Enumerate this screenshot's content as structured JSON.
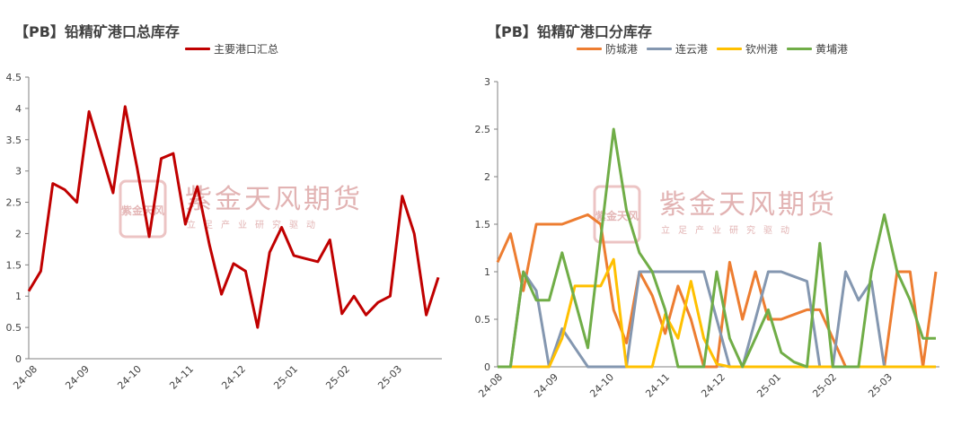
{
  "watermark": {
    "name": "紫金天风期货",
    "subtitle": "立足产业研究驱动",
    "seal": "紫金天风"
  },
  "chart_data": [
    {
      "type": "line",
      "title": "【PB】铅精矿港口总库存",
      "xlabel": "",
      "ylabel": "",
      "ylim": [
        0,
        4.5
      ],
      "yticks": [
        "0",
        "0.5",
        "1",
        "1.5",
        "2",
        "2.5",
        "3",
        "3.5",
        "4",
        "4.5"
      ],
      "xtick_labels": [
        "24-08",
        "24-09",
        "24-10",
        "24-11",
        "24-12",
        "25-01",
        "25-02",
        "25-03"
      ],
      "legend": "top",
      "grid": false,
      "series": [
        {
          "name": "主要港口汇总",
          "color": "#c00000",
          "values": [
            1.08,
            1.4,
            2.8,
            2.7,
            2.5,
            3.95,
            3.3,
            2.65,
            4.03,
            3.05,
            1.95,
            3.2,
            3.28,
            2.15,
            2.75,
            1.82,
            1.03,
            1.52,
            1.4,
            0.5,
            1.7,
            2.1,
            1.65,
            1.6,
            1.55,
            1.9,
            0.72,
            1.0,
            0.7,
            0.9,
            1.0,
            2.6,
            2.0,
            0.7,
            1.3
          ]
        }
      ]
    },
    {
      "type": "line",
      "title": "【PB】铅精矿港口分库存",
      "xlabel": "",
      "ylabel": "",
      "ylim": [
        0,
        3
      ],
      "yticks": [
        "0",
        "0.5",
        "1",
        "1.5",
        "2",
        "2.5",
        "3"
      ],
      "xtick_labels": [
        "24-08",
        "24-09",
        "24-10",
        "24-11",
        "24-12",
        "25-01",
        "25-02",
        "25-03"
      ],
      "legend": "top",
      "grid": false,
      "series": [
        {
          "name": "防城港",
          "color": "#ed7d31",
          "values": [
            1.1,
            1.4,
            0.8,
            1.5,
            1.5,
            1.5,
            1.55,
            1.6,
            1.5,
            0.6,
            0.25,
            1.0,
            0.75,
            0.35,
            0.85,
            0.5,
            0.0,
            0.0,
            1.1,
            0.5,
            1.0,
            0.5,
            0.5,
            0.55,
            0.6,
            0.6,
            0.3,
            0.0,
            0.0,
            0.0,
            0.0,
            1.0,
            1.0,
            0.0,
            1.0
          ]
        },
        {
          "name": "连云港",
          "color": "#8497b0",
          "values": [
            0,
            0,
            1.0,
            0.8,
            0.0,
            0.4,
            0.2,
            0.0,
            0.0,
            0.0,
            0.0,
            1.0,
            1.0,
            1.0,
            1.0,
            1.0,
            1.0,
            0.5,
            0.0,
            0.0,
            0.5,
            1.0,
            1.0,
            0.95,
            0.9,
            0.0,
            0.0,
            1.0,
            0.7,
            0.9,
            0.0,
            0.0,
            0.0,
            0.0,
            0.0
          ]
        },
        {
          "name": "钦州港",
          "color": "#ffc000",
          "values": [
            0,
            0,
            0,
            0,
            0,
            0.3,
            0.85,
            0.85,
            0.85,
            1.13,
            0.0,
            0.0,
            0.0,
            0.55,
            0.3,
            0.9,
            0.3,
            0.03,
            0.0,
            0.0,
            0.0,
            0.0,
            0.0,
            0.0,
            0.0,
            0.0,
            0.0,
            0.0,
            0.0,
            0.0,
            0.0,
            0.0,
            0.0,
            0.0,
            0.0
          ]
        },
        {
          "name": "黄埔港",
          "color": "#70ad47",
          "values": [
            0,
            0,
            1.0,
            0.7,
            0.7,
            1.2,
            0.7,
            0.2,
            1.35,
            2.5,
            1.65,
            1.2,
            1.0,
            0.6,
            0.0,
            0.0,
            0.0,
            1.0,
            0.3,
            0.0,
            0.3,
            0.6,
            0.15,
            0.05,
            0.0,
            1.3,
            0.0,
            0.0,
            0.0,
            1.0,
            1.6,
            1.0,
            0.7,
            0.3,
            0.3
          ]
        }
      ]
    }
  ]
}
